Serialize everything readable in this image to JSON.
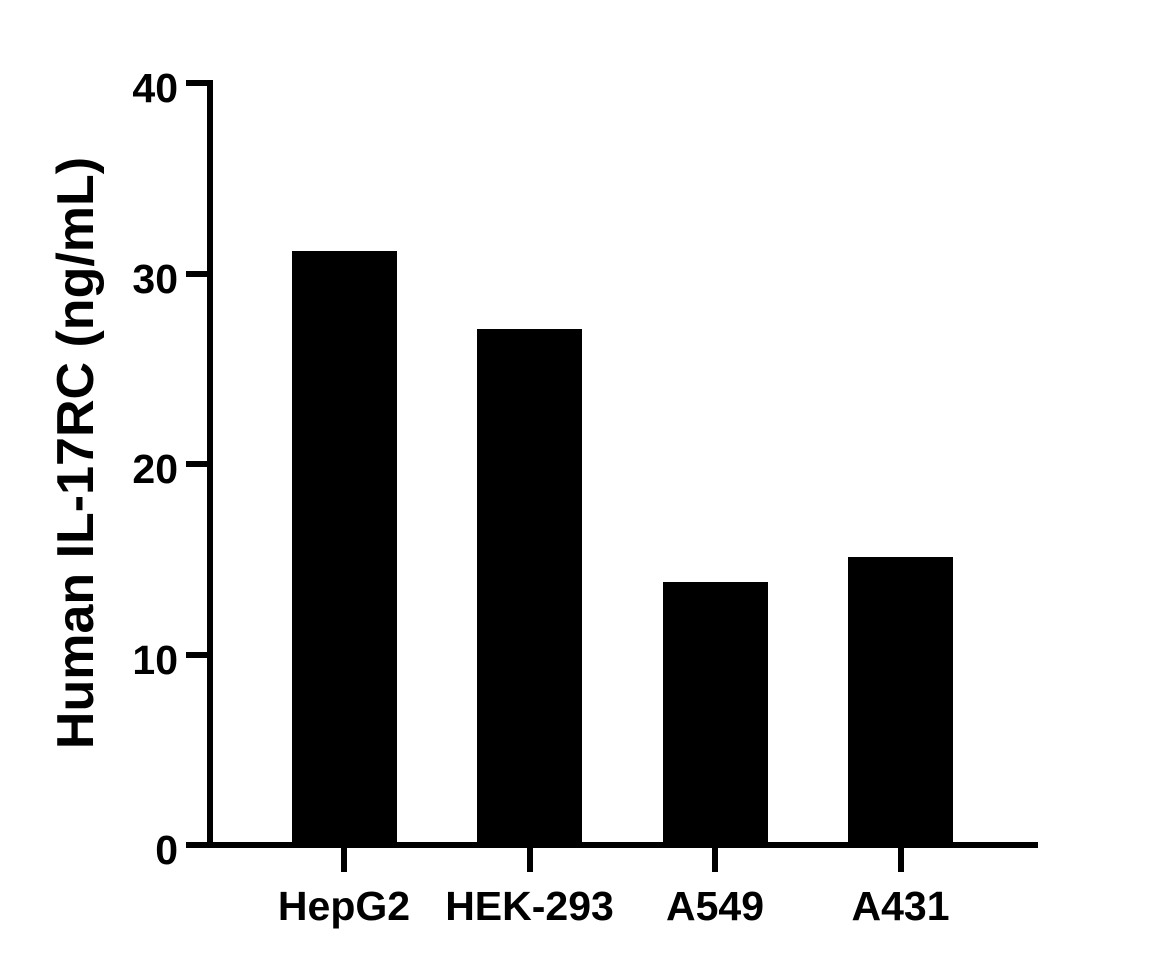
{
  "chart_data": {
    "type": "bar",
    "title": "",
    "ylabel": "Human IL-17RC (ng/mL)",
    "xlabel": "",
    "categories": [
      "HepG2",
      "HEK-293",
      "A549",
      "A431"
    ],
    "values": [
      31.2,
      27.1,
      13.8,
      15.1
    ],
    "ylim": [
      0,
      40
    ],
    "yticks": [
      0,
      10,
      20,
      30,
      40
    ],
    "bar_color": "#000000",
    "axis_color": "#000000",
    "background_color": "#ffffff",
    "grid": "off",
    "legend": "none"
  }
}
